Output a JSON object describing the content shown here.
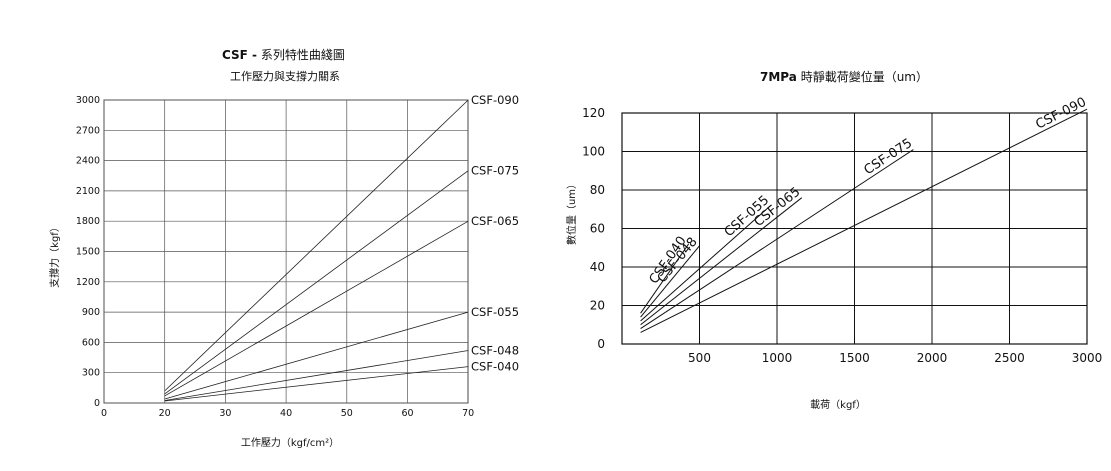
{
  "charts": {
    "left": {
      "title_strong": "CSF -",
      "title_rest": " 系列特性曲綫圖",
      "subtitle": "工作壓力與支撐力關系",
      "xlabel": "工作壓力（kgf/cm²）",
      "ylabel": "支撐力（kgf）"
    },
    "right": {
      "title_strong": "7MPa",
      "title_rest": " 時靜載荷變位量（um）",
      "xlabel": "載荷（kgf）",
      "ylabel": "數位量（um）"
    }
  },
  "chart_data": [
    {
      "type": "line",
      "title": "CSF - 系列特性曲綫圖",
      "subtitle": "工作壓力與支撐力關系",
      "xlabel": "工作壓力（kgf/cm²）",
      "ylabel": "支撐力（kgf）",
      "xlim": [
        0,
        70
      ],
      "ylim": [
        0,
        3000
      ],
      "x_ticks": [
        "0",
        "20",
        "30",
        "40",
        "50",
        "60",
        "70"
      ],
      "y_ticks": [
        "0",
        "300",
        "600",
        "900",
        "1200",
        "1500",
        "1800",
        "2100",
        "2400",
        "2700",
        "3000"
      ],
      "grid": true,
      "series": [
        {
          "name": "CSF-090",
          "x": [
            20,
            70
          ],
          "y": [
            120,
            3000
          ]
        },
        {
          "name": "CSF-075",
          "x": [
            20,
            70
          ],
          "y": [
            90,
            2300
          ]
        },
        {
          "name": "CSF-065",
          "x": [
            20,
            70
          ],
          "y": [
            70,
            1800
          ]
        },
        {
          "name": "CSF-055",
          "x": [
            20,
            70
          ],
          "y": [
            40,
            900
          ]
        },
        {
          "name": "CSF-048",
          "x": [
            20,
            70
          ],
          "y": [
            25,
            520
          ]
        },
        {
          "name": "CSF-040",
          "x": [
            20,
            70
          ],
          "y": [
            20,
            360
          ]
        }
      ]
    },
    {
      "type": "line",
      "title": "7MPa 時靜載荷變位量（um）",
      "xlabel": "載荷（kgf）",
      "ylabel": "數位量（um）",
      "xlim": [
        0,
        3000
      ],
      "ylim": [
        0,
        120
      ],
      "x_ticks": [
        "500",
        "1000",
        "1500",
        "2000",
        "2500",
        "3000"
      ],
      "y_ticks": [
        "0",
        "20",
        "40",
        "60",
        "80",
        "100",
        "120"
      ],
      "grid": true,
      "series": [
        {
          "name": "CSF-040",
          "x": [
            120,
            430
          ],
          "y": [
            16,
            52
          ]
        },
        {
          "name": "CSF-048",
          "x": [
            120,
            500
          ],
          "y": [
            14,
            51
          ]
        },
        {
          "name": "CSF-055",
          "x": [
            120,
            960
          ],
          "y": [
            12,
            72
          ]
        },
        {
          "name": "CSF-065",
          "x": [
            120,
            1160
          ],
          "y": [
            10,
            76
          ]
        },
        {
          "name": "CSF-075",
          "x": [
            120,
            1880
          ],
          "y": [
            8,
            101
          ]
        },
        {
          "name": "CSF-090",
          "x": [
            120,
            3000
          ],
          "y": [
            6,
            122
          ]
        }
      ]
    }
  ]
}
